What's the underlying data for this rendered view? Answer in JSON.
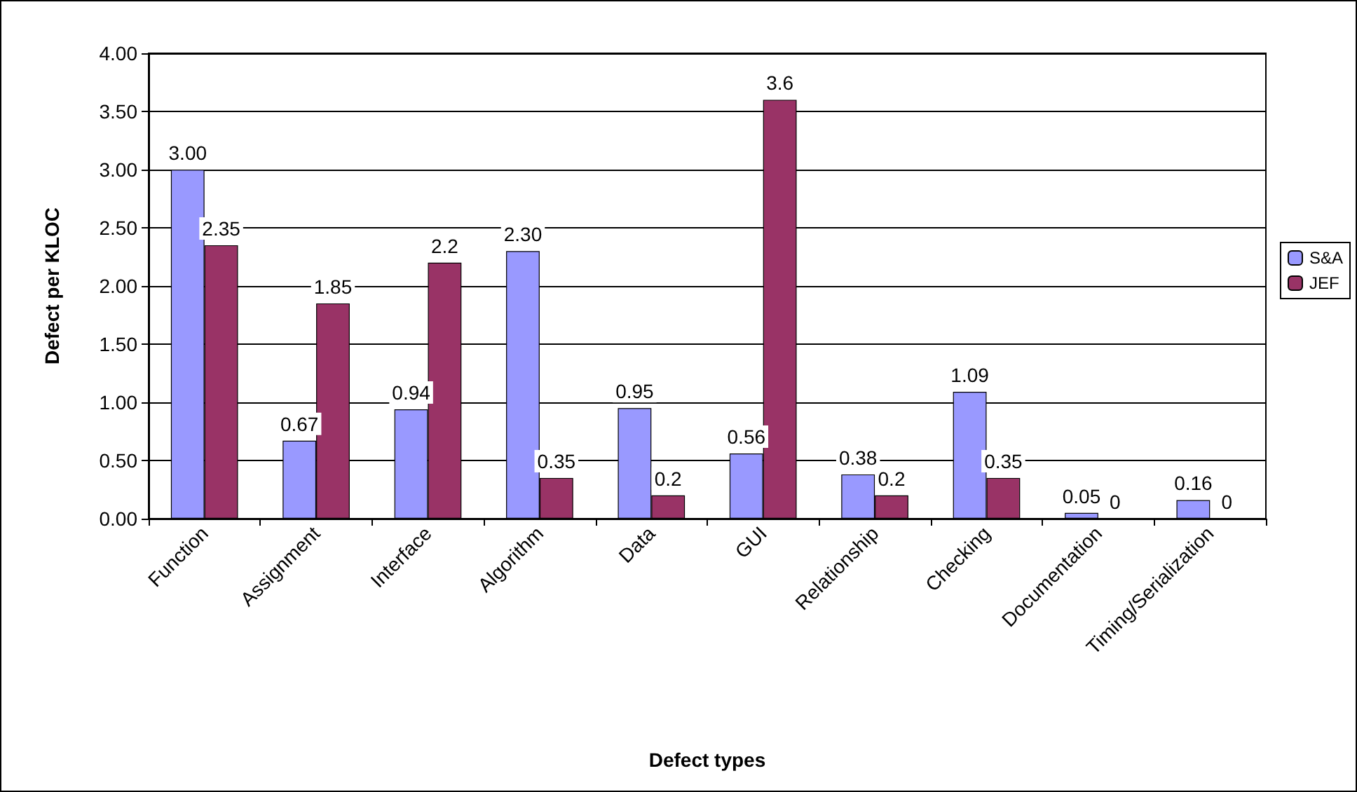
{
  "chart_data": {
    "type": "bar",
    "xlabel": "Defect types",
    "ylabel": "Defect per KLOC",
    "categories": [
      "Function",
      "Assignment",
      "Interface",
      "Algorithm",
      "Data",
      "GUI",
      "Relationship",
      "Checking",
      "Documentation",
      "Timing/Serialization"
    ],
    "series": [
      {
        "name": "S&A",
        "color": "#9999ff",
        "values": [
          3.0,
          0.67,
          0.94,
          2.3,
          0.95,
          0.56,
          0.38,
          1.09,
          0.05,
          0.16
        ],
        "value_labels": [
          "3.00",
          "0.67",
          "0.94",
          "2.30",
          "0.95",
          "0.56",
          "0.38",
          "1.09",
          "0.05",
          "0.16"
        ]
      },
      {
        "name": "JEF",
        "color": "#993366",
        "values": [
          2.35,
          1.85,
          2.2,
          0.35,
          0.2,
          3.6,
          0.2,
          0.35,
          0,
          0
        ],
        "value_labels": [
          "2.35",
          "1.85",
          "2.2",
          "0.35",
          "0.2",
          "3.6",
          "0.2",
          "0.35",
          "0",
          "0"
        ]
      }
    ],
    "ylim": [
      0,
      4
    ],
    "yticks": [
      {
        "value": 0,
        "label": "0.00"
      },
      {
        "value": 0.5,
        "label": "0.50"
      },
      {
        "value": 1,
        "label": "1.00"
      },
      {
        "value": 1.5,
        "label": "1.50"
      },
      {
        "value": 2,
        "label": "2.00"
      },
      {
        "value": 2.5,
        "label": "2.50"
      },
      {
        "value": 3,
        "label": "3.00"
      },
      {
        "value": 3.5,
        "label": "3.50"
      },
      {
        "value": 4,
        "label": "4.00"
      }
    ],
    "grid": "y",
    "legend": "right"
  }
}
